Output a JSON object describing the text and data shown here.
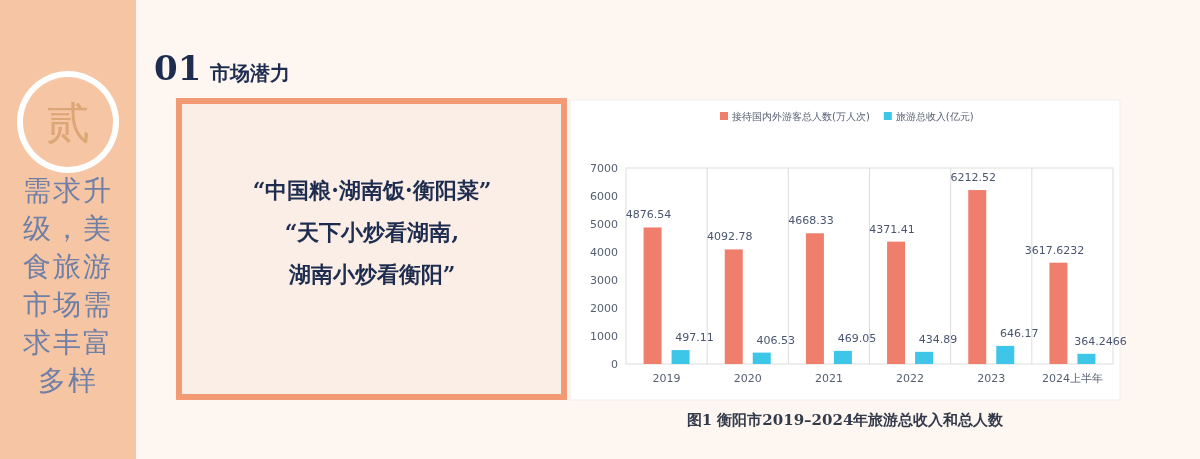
{
  "chart_data": {
    "type": "bar",
    "title": "图1 衡阳市2019–2024年旅游总收入和总人数",
    "categories": [
      "2019",
      "2020",
      "2021",
      "2022",
      "2023",
      "2024上半年"
    ],
    "series": [
      {
        "name": "接待国内外游客总人数(万人次)",
        "color": "#ef7f6c",
        "values": [
          4876.54,
          4092.78,
          4668.33,
          4371.41,
          6212.52,
          3617.6232
        ]
      },
      {
        "name": "旅游总收入(亿元)",
        "color": "#3ec6e8",
        "values": [
          497.11,
          406.53,
          469.05,
          434.89,
          646.17,
          364.2466
        ]
      }
    ],
    "ylim": [
      0,
      7000
    ],
    "yticks": [
      0,
      1000,
      2000,
      3000,
      4000,
      5000,
      6000,
      7000
    ],
    "data_labels": true,
    "legend": "top",
    "grid": "x",
    "annotations": [
      "贰",
      "需求升级，美食旅游市场需求丰富多样",
      "01",
      "市场潜力",
      "“中国粮·湖南饭·衡阳菜”",
      "“天下小炒看湖南,",
      "湖南小炒看衡阳”"
    ]
  }
}
